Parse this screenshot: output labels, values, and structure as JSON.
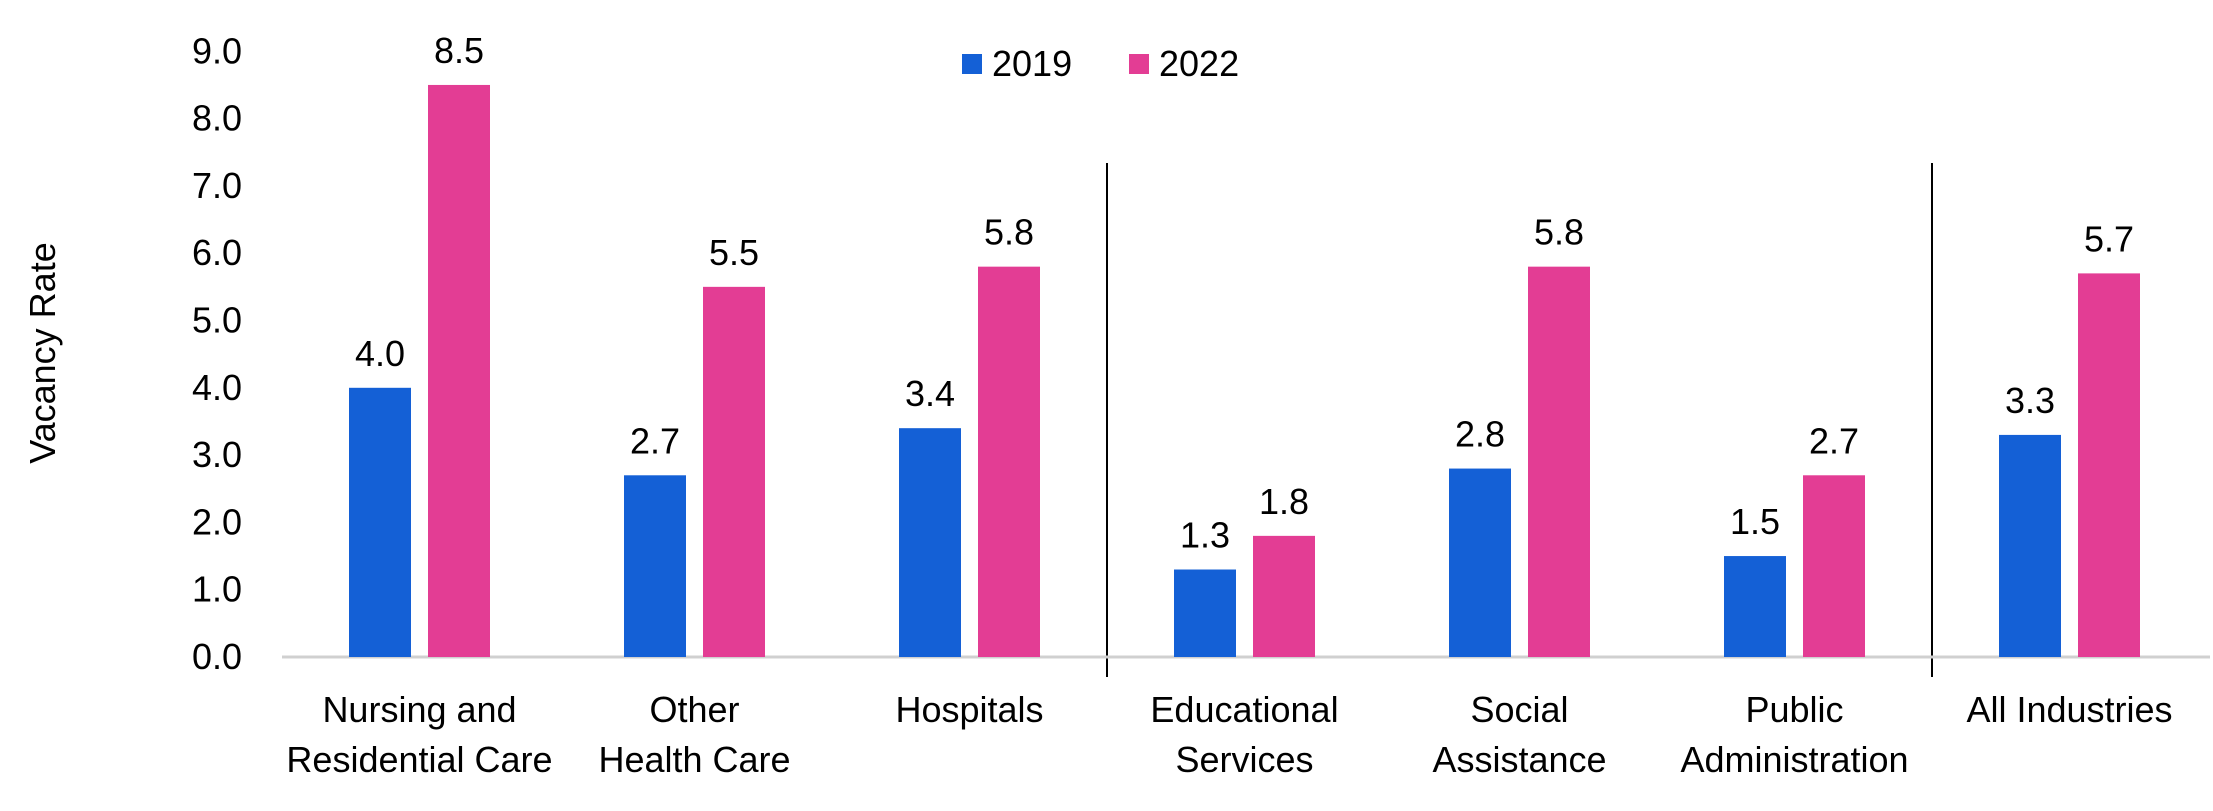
{
  "chart_data": {
    "type": "bar",
    "ylabel": "Vacancy Rate",
    "xlabel": "",
    "ylim": [
      0,
      9
    ],
    "y_tick_step": 1,
    "y_tick_labels": [
      "0.0",
      "1.0",
      "2.0",
      "3.0",
      "4.0",
      "5.0",
      "6.0",
      "7.0",
      "8.0",
      "9.0"
    ],
    "grid": false,
    "legend_position": "top-center",
    "categories": [
      "Nursing and Residential Care",
      "Other Health Care",
      "Hospitals",
      "Educational Services",
      "Social Assistance",
      "Public Administration",
      "All Industries"
    ],
    "category_label_lines": [
      [
        "Nursing and",
        "Residential Care"
      ],
      [
        "Other",
        "Health Care"
      ],
      [
        "Hospitals"
      ],
      [
        "Educational",
        "Services"
      ],
      [
        "Social",
        "Assistance"
      ],
      [
        "Public",
        "Administration"
      ],
      [
        "All Industries"
      ]
    ],
    "series": [
      {
        "name": "2019",
        "color": "#1460D6",
        "values": [
          4.0,
          2.7,
          3.4,
          1.3,
          2.8,
          1.5,
          3.3
        ],
        "labels": [
          "4.0",
          "2.7",
          "3.4",
          "1.3",
          "2.8",
          "1.5",
          "3.3"
        ]
      },
      {
        "name": "2022",
        "color": "#E33D94",
        "values": [
          8.5,
          5.5,
          5.8,
          1.8,
          5.8,
          2.7,
          5.7
        ],
        "labels": [
          "8.5",
          "5.5",
          "5.8",
          "1.8",
          "5.8",
          "2.7",
          "5.7"
        ]
      }
    ],
    "group_separators_after": [
      2,
      5
    ]
  }
}
